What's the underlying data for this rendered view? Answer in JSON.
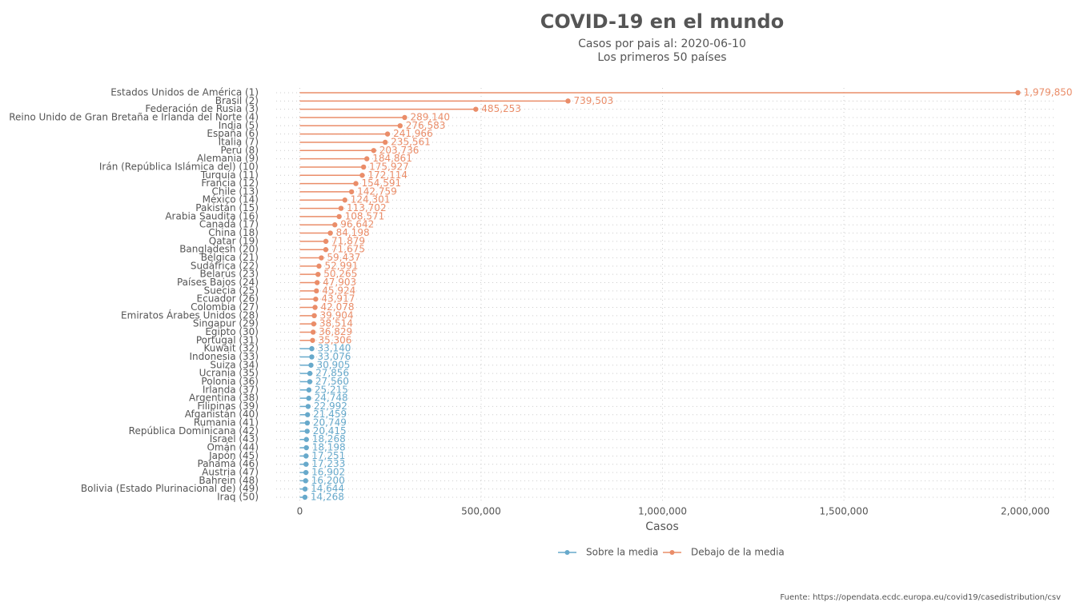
{
  "chart_data": {
    "type": "lollipop",
    "title": "COVID-19 en el mundo",
    "subtitle": [
      "Casos por pais al:  2020-06-10",
      "Los primeros 50 países"
    ],
    "x_label": "Casos",
    "caption": "Fuente: https://opendata.ecdc.europa.eu/covid19/casedistribution/csv",
    "categories": [
      "Estados Unidos de América (1)",
      "Brasil (2)",
      "Federación de Rusia (3)",
      "Reino Unido de Gran Bretaña e Irlanda del Norte (4)",
      "India (5)",
      "España (6)",
      "Italia (7)",
      "Perú (8)",
      "Alemania (9)",
      "Irán (República Islámica del) (10)",
      "Turquía (11)",
      "Francia (12)",
      "Chile (13)",
      "México (14)",
      "Pakistán (15)",
      "Arabia Saudita (16)",
      "Canadá (17)",
      "China (18)",
      "Qatar (19)",
      "Bangladesh (20)",
      "Bélgica (21)",
      "Sudáfrica (22)",
      "Belarús (23)",
      "Países Bajos (24)",
      "Suecia (25)",
      "Ecuador (26)",
      "Colombia (27)",
      "Emiratos Árabes Unidos (28)",
      "Singapur (29)",
      "Egipto (30)",
      "Portugal (31)",
      "Kuwait (32)",
      "Indonesia (33)",
      "Suiza (34)",
      "Ucrania (35)",
      "Polonia (36)",
      "Irlanda (37)",
      "Argentina (38)",
      "Filipinas (39)",
      "Afganistán (40)",
      "Rumania (41)",
      "República Dominicana (42)",
      "Israel (43)",
      "Omán (44)",
      "Japón (45)",
      "Panamá (46)",
      "Austria (47)",
      "Bahrein (48)",
      "Bolivia (Estado Plurinacional de) (49)",
      "Iraq (50)"
    ],
    "series": [
      {
        "name": "Sobre la media",
        "color": "#67a9cb",
        "values": [
          null,
          null,
          null,
          null,
          null,
          null,
          null,
          null,
          null,
          null,
          null,
          null,
          null,
          null,
          null,
          null,
          null,
          null,
          null,
          null,
          null,
          null,
          null,
          null,
          null,
          null,
          null,
          null,
          null,
          null,
          null,
          33140,
          33076,
          30905,
          27856,
          27560,
          25215,
          24748,
          22992,
          21459,
          20749,
          20415,
          18268,
          18198,
          17251,
          17233,
          16902,
          16200,
          14644,
          14268
        ],
        "value_labels": [
          null,
          null,
          null,
          null,
          null,
          null,
          null,
          null,
          null,
          null,
          null,
          null,
          null,
          null,
          null,
          null,
          null,
          null,
          null,
          null,
          null,
          null,
          null,
          null,
          null,
          null,
          null,
          null,
          null,
          null,
          null,
          "33,140",
          "33,076",
          "30,905",
          "27,856",
          "27,560",
          "25,215",
          "24,748",
          "22,992",
          "21,459",
          "20,749",
          "20,415",
          "18,268",
          "18,198",
          "17,251",
          "17,233",
          "16,902",
          "16,200",
          "14,644",
          "14,268"
        ]
      },
      {
        "name": "Debajo de la media",
        "color": "#ea8d69",
        "values": [
          1979850,
          739503,
          485253,
          289140,
          276583,
          241966,
          235561,
          203736,
          184861,
          175927,
          172114,
          154591,
          142759,
          124301,
          113702,
          108571,
          96642,
          84198,
          71879,
          71675,
          59437,
          52991,
          50265,
          47903,
          45924,
          43917,
          42078,
          39904,
          38514,
          36829,
          35306,
          null,
          null,
          null,
          null,
          null,
          null,
          null,
          null,
          null,
          null,
          null,
          null,
          null,
          null,
          null,
          null,
          null,
          null,
          null
        ],
        "value_labels": [
          "1,979,850",
          "739,503",
          "485,253",
          "289,140",
          "276,583",
          "241,966",
          "235,561",
          "203,736",
          "184,861",
          "175,927",
          "172,114",
          "154,591",
          "142,759",
          "124,301",
          "113,702",
          "108,571",
          "96,642",
          "84,198",
          "71,879",
          "71,675",
          "59,437",
          "52,991",
          "50,265",
          "47,903",
          "45,924",
          "43,917",
          "42,078",
          "39,904",
          "38,514",
          "36,829",
          "35,306",
          null,
          null,
          null,
          null,
          null,
          null,
          null,
          null,
          null,
          null,
          null,
          null,
          null,
          null,
          null,
          null,
          null,
          null,
          null
        ]
      }
    ],
    "xlim": [
      -65000,
      2087000
    ],
    "xticks": [
      0,
      {
        "value": 500000,
        "label": "500,000"
      },
      {
        "value": 1000000,
        "label": "1,000,000"
      },
      {
        "value": 1500000,
        "label": "1,500,000"
      },
      {
        "value": 2000000,
        "label": "2,000,000"
      }
    ],
    "grid": true,
    "legend": "bottom"
  }
}
